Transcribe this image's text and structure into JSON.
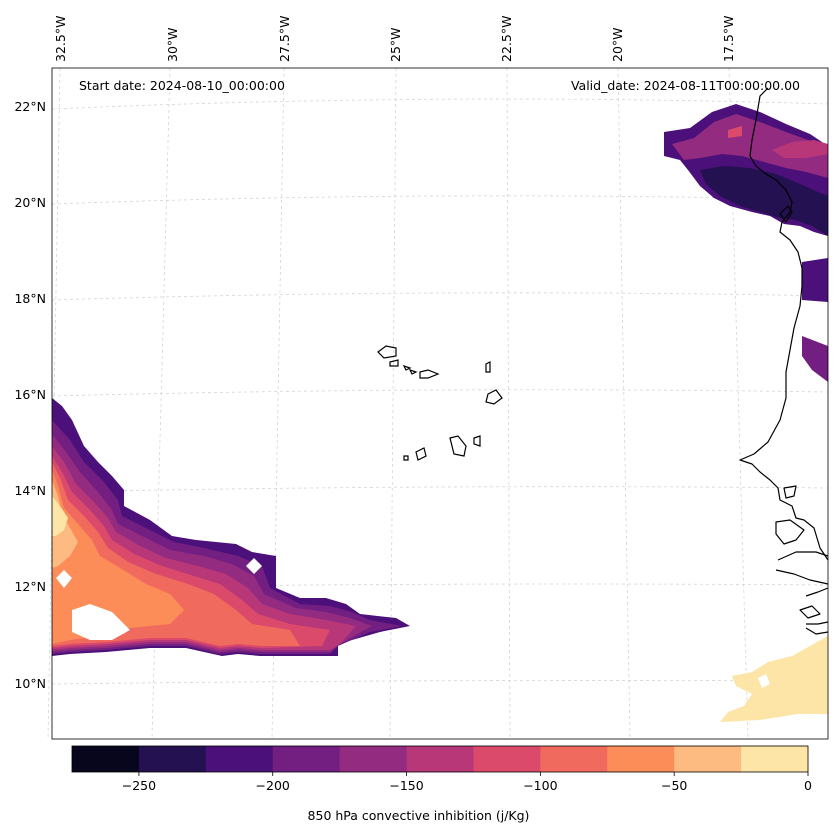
{
  "annotations": {
    "start_date": "Start date: 2024-08-10_00:00:00",
    "valid_date": "Valid_date: 2024-08-11T00:00:00.00"
  },
  "map": {
    "lon_labels": [
      "32.5°W",
      "30°W",
      "27.5°W",
      "25°W",
      "22.5°W",
      "20°W",
      "17.5°W"
    ],
    "lat_labels": [
      "22°N",
      "20°N",
      "18°N",
      "16°N",
      "14°N",
      "12°N",
      "10°N"
    ],
    "gridlines": true
  },
  "colorbar": {
    "label": "850 hPa convective inhibition (j/Kg)",
    "tick_labels": [
      "−250",
      "−200",
      "−150",
      "−100",
      "−50",
      "0"
    ],
    "range": [
      -275,
      0
    ],
    "colors": [
      "#07061c",
      "#231151",
      "#4b1079",
      "#721f81",
      "#932b80",
      "#b73779",
      "#dc4a6b",
      "#f06b5e",
      "#fc8d59",
      "#febb81",
      "#fde5a7"
    ]
  }
}
